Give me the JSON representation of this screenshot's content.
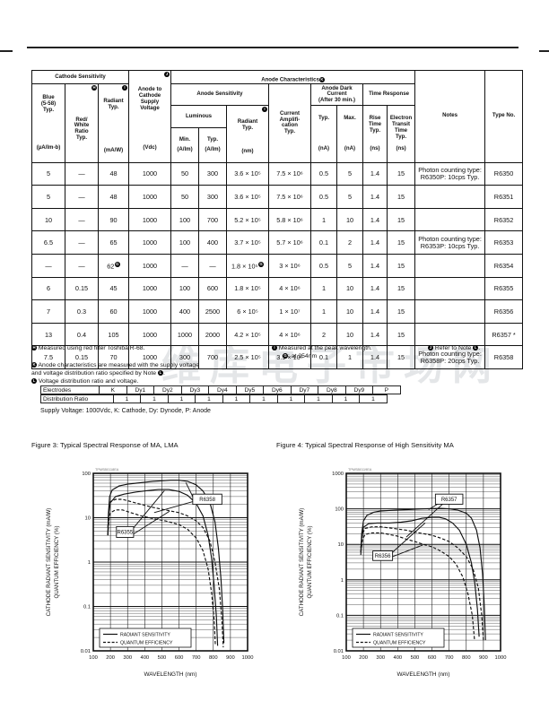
{
  "watermark": "维库电子市场网",
  "table": {
    "header": {
      "cathode_sensitivity": "Cathode Sensitivity",
      "anode_characteristics": {
        "text": "Anode Characteristics",
        "marker": "K"
      },
      "anode_supply": {
        "label": "Anode to\nCathode\nSupply\nVoltage",
        "unit": "(Vdc)",
        "marker": "J"
      },
      "blue": {
        "label": "Blue\n(5-58)\nTyp.",
        "unit": "(µA/lm-b)"
      },
      "red_white": {
        "label": "Red/\nWhite\nRatio\nTyp.",
        "marker": "H"
      },
      "radiant_cathode": {
        "label": "Radiant\nTyp.",
        "unit": "(mA/W)",
        "marker": "I"
      },
      "anode_sensitivity": "Anode Sensitivity",
      "luminous": "Luminous",
      "lum_min": {
        "label": "Min.",
        "unit": "(A/lm)"
      },
      "lum_typ": {
        "label": "Typ.",
        "unit": "(A/lm)"
      },
      "radiant_anode": {
        "label": "Radiant\nTyp.",
        "unit": "(nm)",
        "marker": "I"
      },
      "current_amp": {
        "label": "Current\nAmplifi-\ncation\nTyp."
      },
      "dark_current": "Anode Dark\nCurrent\n(After 30 min.)",
      "dark_typ": {
        "label": "Typ.",
        "unit": "(nA)"
      },
      "dark_max": {
        "label": "Max.",
        "unit": "(nA)"
      },
      "time_response": "Time Response",
      "rise": {
        "label": "Rise\nTime\nTyp.",
        "unit": "(ns)"
      },
      "transit": {
        "label": "Electron\nTransit\nTime\nTyp.",
        "unit": "(ns)"
      },
      "notes": "Notes",
      "type_no": "Type No."
    },
    "rows": [
      {
        "cells": [
          "5",
          "—",
          "48",
          "1000",
          "50",
          "300",
          "3.6 × 10⁵",
          "7.5 × 10⁶",
          "0.5",
          "5",
          "1.4",
          "15"
        ],
        "note": "Photon counting type:\nR6350P: 10cps Typ.",
        "type": "R6350"
      },
      {
        "cells": [
          "5",
          "—",
          "48",
          "1000",
          "50",
          "300",
          "3.6 × 10⁵",
          "7.5 × 10⁶",
          "0.5",
          "5",
          "1.4",
          "15"
        ],
        "note": "",
        "type": "R6351"
      },
      {
        "cells": [
          "10",
          "—",
          "90",
          "1000",
          "100",
          "700",
          "5.2 × 10⁵",
          "5.8 × 10⁶",
          "1",
          "10",
          "1.4",
          "15"
        ],
        "note": "",
        "type": "R6352"
      },
      {
        "cells": [
          "6.5",
          "—",
          "65",
          "1000",
          "100",
          "400",
          "3.7 × 10⁵",
          "5.7 × 10⁶",
          "0.1",
          "2",
          "1.4",
          "15"
        ],
        "note": "Photon counting type:\nR6353P: 10cps Typ.",
        "type": "R6353"
      },
      {
        "cells": [
          "—",
          "—",
          {
            "v": "62",
            "m": "G"
          },
          "1000",
          "—",
          "—",
          {
            "v": "1.8 × 10⁵",
            "m": "G"
          },
          "3 × 10⁶",
          "0.5",
          "5",
          "1.4",
          "15"
        ],
        "note": "",
        "type": "R6354"
      },
      {
        "cells": [
          "6",
          "0.15",
          "45",
          "1000",
          "100",
          "600",
          "1.8 × 10⁵",
          "4 × 10⁶",
          "1",
          "10",
          "1.4",
          "15"
        ],
        "note": "",
        "type": "R6355"
      },
      {
        "cells": [
          "7",
          "0.3",
          "60",
          "1000",
          "400",
          "2500",
          "6 × 10⁵",
          "1 × 10⁷",
          "1",
          "10",
          "1.4",
          "15"
        ],
        "note": "",
        "type": "R6356"
      },
      {
        "cells": [
          "13",
          "0.4",
          "105",
          "1000",
          "1000",
          "2000",
          "4.2 × 10⁵",
          "4 × 10⁶",
          "2",
          "10",
          "1.4",
          "15"
        ],
        "note": "",
        "type": "R6357 *"
      },
      {
        "cells": [
          "7.5",
          "0.15",
          "70",
          "1000",
          "300",
          "700",
          "2.5 × 10⁵",
          "3.5 × 10⁶",
          "0.1",
          "1",
          "1.4",
          "15"
        ],
        "note": "Photon counting type:\nR6358P: 20cps Typ.",
        "type": "R6358"
      }
    ]
  },
  "notes": [
    {
      "marker": "H",
      "text": "Measured using red filter Toshiba R-68."
    },
    {
      "marker": "I",
      "text": "Measured at the peak wavelength.",
      "sub_marker": "G",
      "sub_text": ": at 254nm"
    },
    {
      "marker": "J",
      "text": "Refer to Note ",
      "ref": "L",
      "suffix": "."
    },
    {
      "marker": "K",
      "text": "Anode characteristics are measured with the supply voltage\nand voltage distribution ratio specified by Note ",
      "ref": "L",
      "suffix": "."
    },
    {
      "marker": "L",
      "text": "Voltage distribution ratio and voltage."
    }
  ],
  "electrode_table": {
    "row1_label": "Electrodes",
    "electrodes": [
      "K",
      "Dy1",
      "Dy2",
      "Dy3",
      "Dy4",
      "Dy5",
      "Dy6",
      "Dy7",
      "Dy8",
      "Dy9",
      "P"
    ],
    "row2_label": "Distribution Ratio",
    "ratios": [
      "1",
      "1",
      "1",
      "1",
      "1",
      "1",
      "1",
      "1",
      "1",
      "1"
    ],
    "supply_line": "Supply Voltage: 1000Vdc, K: Cathode, Dy: Dynode, P: Anode"
  },
  "chart_data": [
    {
      "type": "line",
      "fig_label": "Figure 3: Typical Spectral Response of MA, LMA",
      "code": "TPMSB0118EA",
      "xlabel": "WAVELENGTH (nm)",
      "ylabel": "CATHODE RADIANT SENSITIVITY (mA/W)\nQUANTUM EFFICIENCY (%)",
      "x_range": [
        100,
        1000
      ],
      "x_tick_step": 100,
      "y_log_range": [
        0.01,
        100
      ],
      "legend": [
        "RADIANT SENSITIVITY",
        "QUANTUM EFFICIENCY"
      ],
      "series": [
        {
          "name": "R6358 radiant sensitivity",
          "style": "solid",
          "points": [
            [
              185,
              4
            ],
            [
              188,
              12
            ],
            [
              195,
              30
            ],
            [
              210,
              42
            ],
            [
              250,
              52
            ],
            [
              300,
              57
            ],
            [
              350,
              60
            ],
            [
              400,
              63
            ],
            [
              450,
              66
            ],
            [
              500,
              68
            ],
            [
              550,
              70
            ],
            [
              600,
              70
            ],
            [
              650,
              66
            ],
            [
              700,
              55
            ],
            [
              740,
              40
            ],
            [
              780,
              22
            ],
            [
              810,
              8
            ],
            [
              830,
              2
            ],
            [
              845,
              0.4
            ],
            [
              855,
              0.08
            ],
            [
              862,
              0.015
            ]
          ]
        },
        {
          "name": "R6355 radiant sensitivity",
          "style": "solid",
          "points": [
            [
              185,
              4
            ],
            [
              190,
              12
            ],
            [
              200,
              22
            ],
            [
              230,
              30
            ],
            [
              280,
              34
            ],
            [
              350,
              38
            ],
            [
              420,
              41
            ],
            [
              480,
              43
            ],
            [
              540,
              43
            ],
            [
              600,
              39
            ],
            [
              650,
              32
            ],
            [
              700,
              21
            ],
            [
              740,
              11
            ],
            [
              770,
              4
            ],
            [
              790,
              1.2
            ],
            [
              805,
              0.3
            ],
            [
              818,
              0.06
            ],
            [
              825,
              0.013
            ]
          ]
        },
        {
          "name": "R6358 quantum efficiency",
          "style": "dashed",
          "points": [
            [
              185,
              6
            ],
            [
              192,
              16
            ],
            [
              200,
              23
            ],
            [
              230,
              26
            ],
            [
              270,
              26
            ],
            [
              320,
              23
            ],
            [
              380,
              20
            ],
            [
              450,
              17
            ],
            [
              520,
              15
            ],
            [
              600,
              13
            ],
            [
              650,
              11
            ],
            [
              700,
              8.5
            ],
            [
              740,
              6
            ],
            [
              780,
              3
            ],
            [
              810,
              1
            ],
            [
              835,
              0.25
            ],
            [
              850,
              0.05
            ],
            [
              858,
              0.012
            ]
          ]
        },
        {
          "name": "R6355 quantum efficiency",
          "style": "dashed",
          "points": [
            [
              185,
              4
            ],
            [
              192,
              10
            ],
            [
              200,
              13
            ],
            [
              230,
              15
            ],
            [
              270,
              15
            ],
            [
              320,
              13
            ],
            [
              380,
              11
            ],
            [
              450,
              9.5
            ],
            [
              520,
              8.5
            ],
            [
              600,
              7
            ],
            [
              650,
              5.5
            ],
            [
              700,
              3.5
            ],
            [
              740,
              1.8
            ],
            [
              770,
              0.7
            ],
            [
              790,
              0.2
            ],
            [
              805,
              0.05
            ],
            [
              812,
              0.013
            ]
          ]
        }
      ],
      "annotations": [
        {
          "text": "R6355",
          "box_x": [
            235,
            335
          ],
          "box_y": [
            3.6,
            6.3
          ],
          "leaders": [
            [
              335,
              5.9,
              515,
              41
            ],
            [
              335,
              4.3,
              545,
              14
            ]
          ]
        },
        {
          "text": "R6358",
          "box_x": [
            680,
            850
          ],
          "box_y": [
            20,
            34
          ],
          "leaders": [
            [
              680,
              30,
              640,
              62
            ],
            [
              680,
              23,
              455,
              13
            ]
          ]
        }
      ]
    },
    {
      "type": "line",
      "fig_label": "Figure 4: Typical Spectral Response of High Sensitivity MA",
      "code": "TPMSB0119EA",
      "xlabel": "WAVELENGTH (nm)",
      "ylabel": "CATHODE RADIANT SENSITIVITY (mA/W)\nQUANTUM EFFICIENCY (%)",
      "x_range": [
        100,
        1000
      ],
      "x_tick_step": 100,
      "y_log_range": [
        0.01,
        1000
      ],
      "legend": [
        "RADIANT SENSITIVITY",
        "QUANTUM EFFICIENCY"
      ],
      "series": [
        {
          "name": "R6357 radiant sensitivity",
          "style": "solid",
          "points": [
            [
              185,
              6
            ],
            [
              190,
              20
            ],
            [
              200,
              45
            ],
            [
              220,
              65
            ],
            [
              260,
              80
            ],
            [
              300,
              87
            ],
            [
              350,
              90
            ],
            [
              400,
              92
            ],
            [
              450,
              95
            ],
            [
              500,
              97
            ],
            [
              550,
              100
            ],
            [
              600,
              102
            ],
            [
              650,
              103
            ],
            [
              700,
              100
            ],
            [
              750,
              92
            ],
            [
              800,
              75
            ],
            [
              830,
              55
            ],
            [
              860,
              25
            ],
            [
              880,
              8
            ],
            [
              895,
              1.5
            ],
            [
              905,
              0.2
            ],
            [
              912,
              0.02
            ]
          ]
        },
        {
          "name": "R6356 radiant sensitivity",
          "style": "solid",
          "points": [
            [
              185,
              5
            ],
            [
              190,
              15
            ],
            [
              200,
              30
            ],
            [
              230,
              38
            ],
            [
              280,
              40
            ],
            [
              350,
              40
            ],
            [
              420,
              42
            ],
            [
              480,
              46
            ],
            [
              540,
              54
            ],
            [
              600,
              58
            ],
            [
              640,
              58
            ],
            [
              680,
              52
            ],
            [
              720,
              40
            ],
            [
              760,
              25
            ],
            [
              800,
              10
            ],
            [
              830,
              3
            ],
            [
              850,
              0.8
            ],
            [
              865,
              0.15
            ],
            [
              875,
              0.025
            ]
          ]
        },
        {
          "name": "R6357 quantum efficiency",
          "style": "dashed",
          "points": [
            [
              185,
              8
            ],
            [
              195,
              20
            ],
            [
              210,
              28
            ],
            [
              250,
              31
            ],
            [
              300,
              31
            ],
            [
              350,
              29
            ],
            [
              400,
              27
            ],
            [
              450,
              25
            ],
            [
              500,
              22
            ],
            [
              550,
              20
            ],
            [
              600,
              18
            ],
            [
              650,
              15
            ],
            [
              700,
              12
            ],
            [
              750,
              8
            ],
            [
              800,
              4.5
            ],
            [
              840,
              2
            ],
            [
              870,
              0.6
            ],
            [
              890,
              0.1
            ],
            [
              900,
              0.02
            ]
          ]
        },
        {
          "name": "R6356 quantum efficiency",
          "style": "dashed",
          "points": [
            [
              185,
              6
            ],
            [
              195,
              14
            ],
            [
              210,
              19
            ],
            [
              250,
              21
            ],
            [
              300,
              21
            ],
            [
              350,
              19
            ],
            [
              400,
              17
            ],
            [
              450,
              14
            ],
            [
              500,
              12
            ],
            [
              550,
              10
            ],
            [
              600,
              8.5
            ],
            [
              650,
              6.5
            ],
            [
              700,
              4.5
            ],
            [
              740,
              2.8
            ],
            [
              780,
              1.2
            ],
            [
              810,
              0.4
            ],
            [
              835,
              0.1
            ],
            [
              848,
              0.02
            ]
          ]
        }
      ],
      "annotations": [
        {
          "text": "R6356",
          "box_x": [
            255,
            370
          ],
          "box_y": [
            3.5,
            6.5
          ],
          "leaders": [
            [
              370,
              6,
              560,
              40
            ],
            [
              370,
              4.5,
              545,
              9.5
            ]
          ]
        },
        {
          "text": "R6357",
          "box_x": [
            620,
            780
          ],
          "box_y": [
            135,
            260
          ],
          "leaders": [
            [
              665,
              170,
              580,
              95
            ],
            [
              665,
              140,
              450,
              16
            ]
          ]
        }
      ]
    }
  ]
}
